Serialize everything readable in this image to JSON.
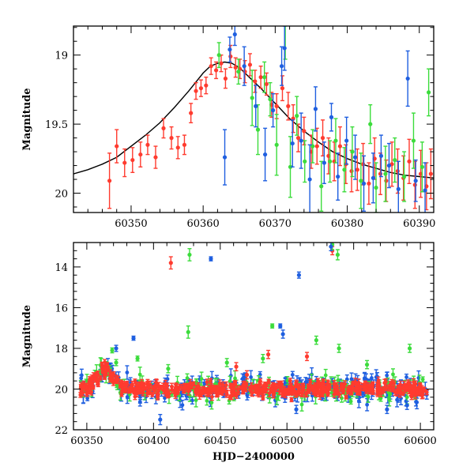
{
  "chart_data": [
    {
      "type": "scatter",
      "panel": "top",
      "xlabel": "",
      "ylabel": "Magnitude",
      "xlim": [
        60342,
        60392
      ],
      "ylim": [
        20.14,
        18.79
      ],
      "y_inverted": true,
      "xticks": [
        60350,
        60360,
        60370,
        60380,
        60390
      ],
      "yticks": [
        19,
        19.5,
        20
      ],
      "ytick_labels": [
        "19",
        "19.5",
        "20"
      ],
      "grid": false,
      "legend": "none",
      "series": [
        {
          "color": "#ff3b2f",
          "error_bars": true,
          "points": [
            [
              60347.0,
              19.91,
              0.2
            ],
            [
              60348.0,
              19.66,
              0.12
            ],
            [
              60349.1,
              19.78,
              0.1
            ],
            [
              60350.2,
              19.76,
              0.09
            ],
            [
              60351.3,
              19.72,
              0.09
            ],
            [
              60352.3,
              19.65,
              0.07
            ],
            [
              60353.4,
              19.74,
              0.08
            ],
            [
              60354.5,
              19.53,
              0.07
            ],
            [
              60355.6,
              19.6,
              0.08
            ],
            [
              60356.5,
              19.67,
              0.08
            ],
            [
              60357.4,
              19.65,
              0.07
            ],
            [
              60358.3,
              19.42,
              0.07
            ],
            [
              60359.0,
              19.26,
              0.06
            ],
            [
              60359.7,
              19.24,
              0.06
            ],
            [
              60360.4,
              19.22,
              0.06
            ],
            [
              60361.1,
              19.08,
              0.06
            ],
            [
              60361.8,
              19.11,
              0.06
            ],
            [
              60362.5,
              19.06,
              0.06
            ],
            [
              60363.1,
              19.17,
              0.07
            ],
            [
              60363.8,
              19.01,
              0.08
            ],
            [
              60364.5,
              19.09,
              0.07
            ],
            [
              60365.1,
              19.1,
              0.07
            ],
            [
              60365.8,
              19.12,
              0.08
            ],
            [
              60366.5,
              19.07,
              0.08
            ],
            [
              60367.2,
              19.19,
              0.08
            ],
            [
              60368.0,
              19.16,
              0.08
            ],
            [
              60368.8,
              19.21,
              0.08
            ],
            [
              60369.5,
              19.36,
              0.09
            ],
            [
              60370.2,
              19.37,
              0.09
            ],
            [
              60371.0,
              19.24,
              0.09
            ],
            [
              60371.8,
              19.37,
              0.1
            ],
            [
              60372.5,
              19.46,
              0.1
            ],
            [
              60373.2,
              19.6,
              0.1
            ],
            [
              60374.0,
              19.55,
              0.1
            ],
            [
              60375.0,
              19.7,
              0.12
            ],
            [
              60375.8,
              19.66,
              0.13
            ],
            [
              60376.6,
              19.6,
              0.13
            ],
            [
              60377.4,
              19.73,
              0.13
            ],
            [
              60378.2,
              19.77,
              0.14
            ],
            [
              60379.0,
              19.66,
              0.14
            ],
            [
              60379.8,
              19.79,
              0.14
            ],
            [
              60380.6,
              19.84,
              0.15
            ],
            [
              60381.4,
              19.83,
              0.15
            ],
            [
              60382.2,
              19.79,
              0.15
            ],
            [
              60383.0,
              19.93,
              0.15
            ],
            [
              60383.8,
              19.75,
              0.15
            ],
            [
              60384.6,
              19.86,
              0.15
            ],
            [
              60385.4,
              19.91,
              0.15
            ],
            [
              60386.2,
              19.79,
              0.16
            ],
            [
              60387.0,
              19.84,
              0.16
            ],
            [
              60387.8,
              19.89,
              0.16
            ],
            [
              60388.6,
              19.77,
              0.16
            ],
            [
              60389.4,
              19.94,
              0.17
            ],
            [
              60390.2,
              19.86,
              0.17
            ],
            [
              60391.0,
              19.95,
              0.17
            ],
            [
              60391.6,
              19.86,
              0.18
            ]
          ]
        },
        {
          "color": "#3cdc3c",
          "error_bars": true,
          "points": [
            [
              60362.2,
              19.0,
              0.09
            ],
            [
              60364.9,
              19.12,
              0.09
            ],
            [
              60366.8,
              19.31,
              0.2
            ],
            [
              60367.6,
              19.54,
              0.18
            ],
            [
              60368.5,
              19.16,
              0.11
            ],
            [
              60369.3,
              19.32,
              0.12
            ],
            [
              60370.2,
              19.65,
              0.22
            ],
            [
              60371.4,
              18.78,
              0.25
            ],
            [
              60372.1,
              19.81,
              0.22
            ],
            [
              60373.0,
              19.44,
              0.14
            ],
            [
              60374.1,
              19.77,
              0.15
            ],
            [
              60375.2,
              19.66,
              0.12
            ],
            [
              60376.4,
              19.95,
              0.18
            ],
            [
              60377.6,
              19.77,
              0.15
            ],
            [
              60378.4,
              19.62,
              0.16
            ],
            [
              60379.6,
              19.83,
              0.16
            ],
            [
              60380.7,
              19.7,
              0.18
            ],
            [
              60381.9,
              19.91,
              0.2
            ],
            [
              60383.2,
              19.5,
              0.14
            ],
            [
              60384.0,
              19.96,
              0.18
            ],
            [
              60385.3,
              19.86,
              0.2
            ],
            [
              60386.6,
              19.76,
              0.16
            ],
            [
              60387.9,
              19.88,
              0.18
            ],
            [
              60389.2,
              19.62,
              0.2
            ],
            [
              60390.4,
              19.81,
              0.18
            ],
            [
              60391.3,
              19.27,
              0.17
            ]
          ]
        },
        {
          "color": "#1f5fe0",
          "error_bars": true,
          "points": [
            [
              60363.0,
              19.74,
              0.2
            ],
            [
              60363.7,
              18.96,
              0.09
            ],
            [
              60364.4,
              18.85,
              0.08
            ],
            [
              60365.7,
              19.08,
              0.14
            ],
            [
              60367.3,
              19.37,
              0.15
            ],
            [
              60368.6,
              19.72,
              0.19
            ],
            [
              60369.7,
              19.4,
              0.12
            ],
            [
              60370.9,
              19.08,
              0.14
            ],
            [
              60371.3,
              18.95,
              0.16
            ],
            [
              60372.4,
              19.64,
              0.17
            ],
            [
              60373.6,
              19.62,
              0.2
            ],
            [
              60374.8,
              19.9,
              0.25
            ],
            [
              60375.6,
              19.39,
              0.16
            ],
            [
              60376.8,
              19.78,
              0.15
            ],
            [
              60377.8,
              19.45,
              0.1
            ],
            [
              60378.7,
              19.88,
              0.17
            ],
            [
              60379.9,
              19.62,
              0.17
            ],
            [
              60381.1,
              19.74,
              0.16
            ],
            [
              60382.3,
              19.93,
              0.2
            ],
            [
              60383.6,
              19.89,
              0.18
            ],
            [
              60384.7,
              19.73,
              0.15
            ],
            [
              60385.8,
              19.8,
              0.16
            ],
            [
              60387.1,
              19.97,
              0.2
            ],
            [
              60388.4,
              19.17,
              0.2
            ],
            [
              60389.5,
              19.91,
              0.15
            ],
            [
              60390.8,
              19.98,
              0.2
            ]
          ]
        },
        {
          "name": "model",
          "type": "line",
          "color": "#000000",
          "x": [
            60342,
            60344,
            60346,
            60348,
            60350,
            60352,
            60354,
            60356,
            60358,
            60360,
            60361,
            60362,
            60363,
            60364,
            60365,
            60366,
            60368,
            60370,
            60372,
            60374,
            60376,
            60378,
            60380,
            60382,
            60384,
            60386,
            60388,
            60390,
            60392
          ],
          "y": [
            19.86,
            19.83,
            19.79,
            19.74,
            19.66,
            19.58,
            19.49,
            19.38,
            19.26,
            19.13,
            19.08,
            19.06,
            19.05,
            19.06,
            19.09,
            19.14,
            19.24,
            19.35,
            19.46,
            19.55,
            19.63,
            19.7,
            19.75,
            19.79,
            19.82,
            19.85,
            19.87,
            19.88,
            19.89
          ]
        }
      ]
    },
    {
      "type": "scatter",
      "panel": "bottom",
      "xlabel": "HJD−2400000",
      "ylabel": "Magnitude",
      "xlim": [
        60340,
        60610
      ],
      "ylim": [
        22,
        12.8
      ],
      "y_inverted": true,
      "xticks": [
        60350,
        60400,
        60450,
        60500,
        60550,
        60600
      ],
      "yticks": [
        14,
        16,
        18,
        20,
        22
      ],
      "ytick_labels": [
        "14",
        "16",
        "18",
        "20",
        "22"
      ],
      "grid": false,
      "legend": "none",
      "series": [
        {
          "color": "#ff3b2f",
          "outliers": [
            [
              60413,
              13.8,
              0.3
            ],
            [
              60486,
              18.3,
              0.2
            ],
            [
              60515,
              18.4,
              0.2
            ],
            [
              60534,
              13.2,
              0.2
            ],
            [
              60462,
              18.9,
              0.2
            ],
            [
              60470,
              19.3,
              0.2
            ]
          ]
        },
        {
          "color": "#3cdc3c",
          "outliers": [
            [
              60369,
              18.1,
              0.12
            ],
            [
              60372,
              18.7,
              0.15
            ],
            [
              60388,
              18.5,
              0.12
            ],
            [
              60427,
              13.4,
              0.3
            ],
            [
              60426,
              17.2,
              0.3
            ],
            [
              60489,
              16.9,
              0.1
            ],
            [
              60522,
              17.6,
              0.2
            ],
            [
              60534,
              12.9,
              0.25
            ],
            [
              60538,
              13.4,
              0.25
            ],
            [
              60539,
              18.0,
              0.2
            ],
            [
              60592,
              18.0,
              0.2
            ],
            [
              60411,
              19.0,
              0.2
            ],
            [
              60455,
              18.7,
              0.2
            ],
            [
              60482,
              18.5,
              0.2
            ],
            [
              60560,
              18.8,
              0.2
            ]
          ]
        },
        {
          "color": "#1f5fe0",
          "outliers": [
            [
              60372,
              18.0,
              0.15
            ],
            [
              60385,
              17.5,
              0.1
            ],
            [
              60443,
              13.6,
              0.1
            ],
            [
              60495,
              16.9,
              0.1
            ],
            [
              60497,
              17.3,
              0.2
            ],
            [
              60509,
              14.4,
              0.15
            ],
            [
              60533,
              13.0,
              0.2
            ],
            [
              60405,
              21.5,
              0.25
            ],
            [
              60507,
              21.0,
              0.2
            ],
            [
              60575,
              21.0,
              0.2
            ],
            [
              60590,
              20.8,
              0.2
            ]
          ]
        }
      ]
    }
  ]
}
